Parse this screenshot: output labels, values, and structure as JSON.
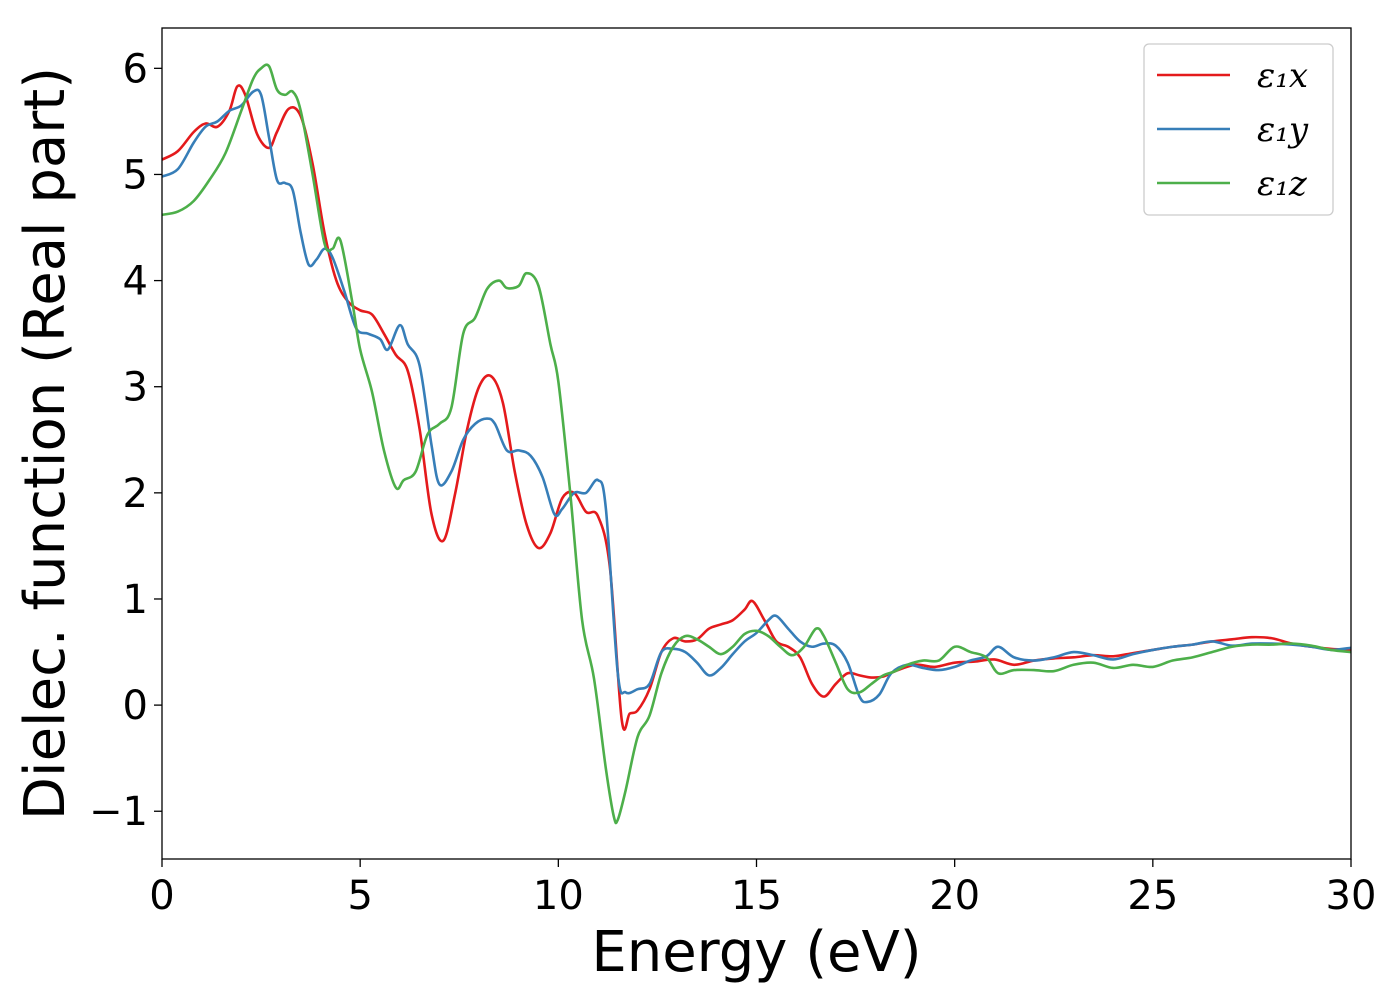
{
  "chart_data": {
    "type": "line",
    "title": "",
    "xlabel": "Energy (eV)",
    "ylabel": "Dielec. function (Real part)",
    "xlim": [
      0,
      30
    ],
    "ylim": [
      -1.45,
      6.38
    ],
    "xticks": [
      0,
      5,
      10,
      15,
      20,
      25,
      30
    ],
    "xtick_labels": [
      "0",
      "5",
      "10",
      "15",
      "20",
      "25",
      "30"
    ],
    "yticks": [
      -1,
      0,
      1,
      2,
      3,
      4,
      5,
      6
    ],
    "ytick_labels": [
      "−1",
      "0",
      "1",
      "2",
      "3",
      "4",
      "5",
      "6"
    ],
    "grid": false,
    "legend_position": "top-right",
    "series": [
      {
        "name": "ε₁x",
        "color": "#e41a1c",
        "x": [
          0,
          0.4,
          0.8,
          1.1,
          1.4,
          1.7,
          1.9,
          2.1,
          2.4,
          2.7,
          2.9,
          3.2,
          3.5,
          3.8,
          4.1,
          4.4,
          4.7,
          5.0,
          5.3,
          5.6,
          5.9,
          6.2,
          6.5,
          6.8,
          7.1,
          7.4,
          7.7,
          8.0,
          8.3,
          8.6,
          8.9,
          9.2,
          9.5,
          9.8,
          10.1,
          10.4,
          10.7,
          11.0,
          11.3,
          11.6,
          11.8,
          12.0,
          12.3,
          12.6,
          12.9,
          13.2,
          13.5,
          13.8,
          14.1,
          14.4,
          14.7,
          14.9,
          15.2,
          15.5,
          15.8,
          16.1,
          16.4,
          16.7,
          17.0,
          17.3,
          17.6,
          17.9,
          18.2,
          18.5,
          19.0,
          19.5,
          20.0,
          20.5,
          21.0,
          21.5,
          22.0,
          22.5,
          23.0,
          23.5,
          24.0,
          24.5,
          25.0,
          25.5,
          26.0,
          26.5,
          27.0,
          27.5,
          28.0,
          28.5,
          29.0,
          29.5,
          30.0
        ],
        "y": [
          5.14,
          5.22,
          5.4,
          5.48,
          5.45,
          5.6,
          5.83,
          5.75,
          5.38,
          5.25,
          5.4,
          5.62,
          5.55,
          5.1,
          4.45,
          4.0,
          3.8,
          3.72,
          3.68,
          3.5,
          3.3,
          3.15,
          2.6,
          1.8,
          1.55,
          2.0,
          2.6,
          3.0,
          3.1,
          2.85,
          2.2,
          1.7,
          1.48,
          1.62,
          1.95,
          2.0,
          1.82,
          1.78,
          1.3,
          -0.14,
          -0.08,
          -0.05,
          0.15,
          0.5,
          0.63,
          0.6,
          0.62,
          0.72,
          0.76,
          0.8,
          0.9,
          0.98,
          0.8,
          0.6,
          0.55,
          0.45,
          0.2,
          0.08,
          0.2,
          0.3,
          0.28,
          0.26,
          0.27,
          0.32,
          0.38,
          0.36,
          0.4,
          0.41,
          0.43,
          0.38,
          0.42,
          0.44,
          0.45,
          0.47,
          0.46,
          0.49,
          0.52,
          0.55,
          0.57,
          0.6,
          0.62,
          0.64,
          0.63,
          0.58,
          0.55,
          0.53,
          0.52
        ]
      },
      {
        "name": "ε₁y",
        "color": "#377eb8",
        "x": [
          0,
          0.4,
          0.8,
          1.1,
          1.4,
          1.7,
          2.0,
          2.3,
          2.5,
          2.7,
          2.9,
          3.1,
          3.3,
          3.5,
          3.7,
          3.9,
          4.1,
          4.3,
          4.6,
          4.9,
          5.2,
          5.5,
          5.7,
          6.0,
          6.2,
          6.5,
          6.8,
          7.0,
          7.3,
          7.6,
          7.9,
          8.2,
          8.4,
          8.7,
          9.0,
          9.3,
          9.6,
          9.9,
          10.1,
          10.4,
          10.7,
          11.0,
          11.2,
          11.5,
          11.7,
          12.0,
          12.3,
          12.6,
          12.9,
          13.2,
          13.5,
          13.8,
          14.1,
          14.4,
          14.7,
          15.0,
          15.3,
          15.5,
          15.8,
          16.1,
          16.4,
          16.7,
          17.0,
          17.3,
          17.6,
          17.8,
          18.1,
          18.4,
          18.8,
          19.2,
          19.6,
          20.0,
          20.4,
          20.8,
          21.1,
          21.5,
          22.0,
          22.5,
          23.0,
          23.5,
          24.0,
          24.5,
          25.0,
          25.5,
          26.0,
          26.5,
          27.0,
          27.5,
          28.0,
          28.5,
          29.0,
          29.5,
          30.0
        ],
        "y": [
          4.98,
          5.05,
          5.3,
          5.45,
          5.5,
          5.6,
          5.65,
          5.78,
          5.75,
          5.35,
          4.95,
          4.92,
          4.85,
          4.45,
          4.15,
          4.2,
          4.3,
          4.22,
          3.9,
          3.55,
          3.5,
          3.45,
          3.35,
          3.58,
          3.4,
          3.2,
          2.45,
          2.08,
          2.2,
          2.5,
          2.65,
          2.7,
          2.65,
          2.4,
          2.4,
          2.35,
          2.15,
          1.8,
          1.85,
          2.0,
          2.0,
          2.12,
          1.85,
          0.3,
          0.12,
          0.15,
          0.2,
          0.5,
          0.53,
          0.5,
          0.4,
          0.28,
          0.35,
          0.48,
          0.6,
          0.68,
          0.8,
          0.84,
          0.72,
          0.6,
          0.55,
          0.58,
          0.56,
          0.4,
          0.08,
          0.03,
          0.1,
          0.3,
          0.38,
          0.35,
          0.33,
          0.36,
          0.42,
          0.46,
          0.55,
          0.45,
          0.42,
          0.45,
          0.5,
          0.47,
          0.43,
          0.48,
          0.52,
          0.55,
          0.57,
          0.6,
          0.56,
          0.58,
          0.58,
          0.57,
          0.55,
          0.52,
          0.54
        ]
      },
      {
        "name": "ε₁z",
        "color": "#4daf4a",
        "x": [
          0,
          0.4,
          0.8,
          1.2,
          1.6,
          2.0,
          2.3,
          2.5,
          2.7,
          2.9,
          3.1,
          3.3,
          3.5,
          3.8,
          4.1,
          4.3,
          4.5,
          4.8,
          5.0,
          5.3,
          5.6,
          5.9,
          6.1,
          6.4,
          6.7,
          7.0,
          7.3,
          7.6,
          7.9,
          8.2,
          8.5,
          8.7,
          9.0,
          9.2,
          9.5,
          9.8,
          10.0,
          10.3,
          10.6,
          10.9,
          11.2,
          11.4,
          11.5,
          11.7,
          12.0,
          12.3,
          12.6,
          12.9,
          13.2,
          13.5,
          13.8,
          14.1,
          14.4,
          14.7,
          15.0,
          15.3,
          15.6,
          15.9,
          16.2,
          16.5,
          16.7,
          17.0,
          17.3,
          17.6,
          17.9,
          18.2,
          18.5,
          18.8,
          19.2,
          19.6,
          20.0,
          20.4,
          20.8,
          21.1,
          21.5,
          22.0,
          22.5,
          23.0,
          23.5,
          24.0,
          24.5,
          25.0,
          25.5,
          26.0,
          26.5,
          27.0,
          27.5,
          28.0,
          28.5,
          29.0,
          29.5,
          30.0
        ],
        "y": [
          4.62,
          4.65,
          4.75,
          4.95,
          5.2,
          5.6,
          5.9,
          6.0,
          6.02,
          5.8,
          5.75,
          5.78,
          5.6,
          5.0,
          4.35,
          4.3,
          4.38,
          3.8,
          3.35,
          2.95,
          2.4,
          2.05,
          2.12,
          2.2,
          2.55,
          2.65,
          2.8,
          3.5,
          3.65,
          3.92,
          4.0,
          3.93,
          3.95,
          4.07,
          3.95,
          3.4,
          3.05,
          2.0,
          0.8,
          0.25,
          -0.6,
          -1.05,
          -1.08,
          -0.8,
          -0.3,
          -0.1,
          0.3,
          0.55,
          0.65,
          0.62,
          0.55,
          0.48,
          0.55,
          0.67,
          0.7,
          0.65,
          0.55,
          0.47,
          0.55,
          0.72,
          0.65,
          0.4,
          0.15,
          0.12,
          0.2,
          0.28,
          0.32,
          0.38,
          0.42,
          0.42,
          0.55,
          0.5,
          0.45,
          0.3,
          0.33,
          0.33,
          0.32,
          0.38,
          0.4,
          0.35,
          0.38,
          0.36,
          0.42,
          0.45,
          0.5,
          0.55,
          0.57,
          0.57,
          0.58,
          0.56,
          0.52,
          0.5
        ]
      }
    ]
  }
}
